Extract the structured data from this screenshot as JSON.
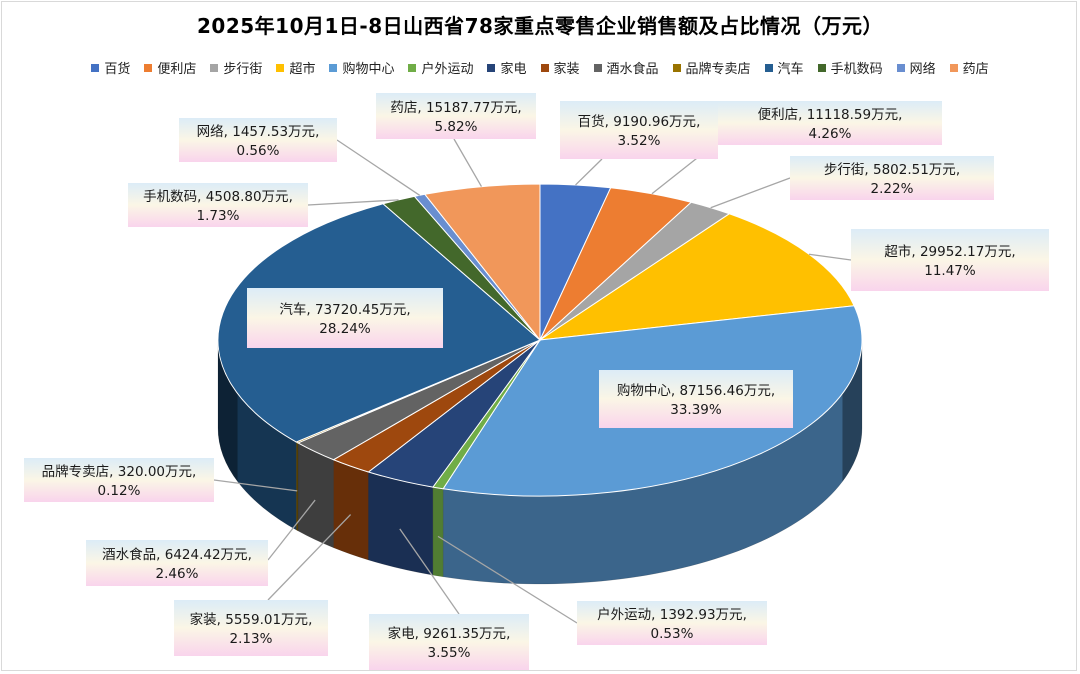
{
  "chart_data": {
    "type": "pie",
    "title": "2025年10月1日-8日山西省78家重点零售企业销售额及占比情况（万元）",
    "unit": "万元",
    "legend_position": "top",
    "slices": [
      {
        "name": "百货",
        "value": 9190.96,
        "value_text": "9190.96万元",
        "percent": "3.52%",
        "color": "#4472c4"
      },
      {
        "name": "便利店",
        "value": 11118.59,
        "value_text": "11118.59万元",
        "percent": "4.26%",
        "color": "#ed7d31"
      },
      {
        "name": "步行街",
        "value": 5802.51,
        "value_text": "5802.51万元",
        "percent": "2.22%",
        "color": "#a5a5a5"
      },
      {
        "name": "超市",
        "value": 29952.17,
        "value_text": "29952.17万元",
        "percent": "11.47%",
        "color": "#ffc000"
      },
      {
        "name": "购物中心",
        "value": 87156.46,
        "value_text": "87156.46万元",
        "percent": "33.39%",
        "color": "#5b9bd5"
      },
      {
        "name": "户外运动",
        "value": 1392.93,
        "value_text": "1392.93万元",
        "percent": "0.53%",
        "color": "#70ad47"
      },
      {
        "name": "家电",
        "value": 9261.35,
        "value_text": "9261.35万元",
        "percent": "3.55%",
        "color": "#264478"
      },
      {
        "name": "家装",
        "value": 5559.01,
        "value_text": "5559.01万元",
        "percent": "2.13%",
        "color": "#9e480e"
      },
      {
        "name": "酒水食品",
        "value": 6424.42,
        "value_text": "6424.42万元",
        "percent": "2.46%",
        "color": "#636363"
      },
      {
        "name": "品牌专卖店",
        "value": 320.0,
        "value_text": "320.00万元",
        "percent": "0.12%",
        "color": "#997300"
      },
      {
        "name": "汽车",
        "value": 73720.45,
        "value_text": "73720.45万元",
        "percent": "28.24%",
        "color": "#255e91"
      },
      {
        "name": "手机数码",
        "value": 4508.8,
        "value_text": "4508.80万元",
        "percent": "1.73%",
        "color": "#43682b"
      },
      {
        "name": "网络",
        "value": 1457.53,
        "value_text": "1457.53万元",
        "percent": "0.56%",
        "color": "#698ed0"
      },
      {
        "name": "药店",
        "value": 15187.77,
        "value_text": "15187.77万元",
        "percent": "5.82%",
        "color": "#f1975a"
      }
    ]
  }
}
